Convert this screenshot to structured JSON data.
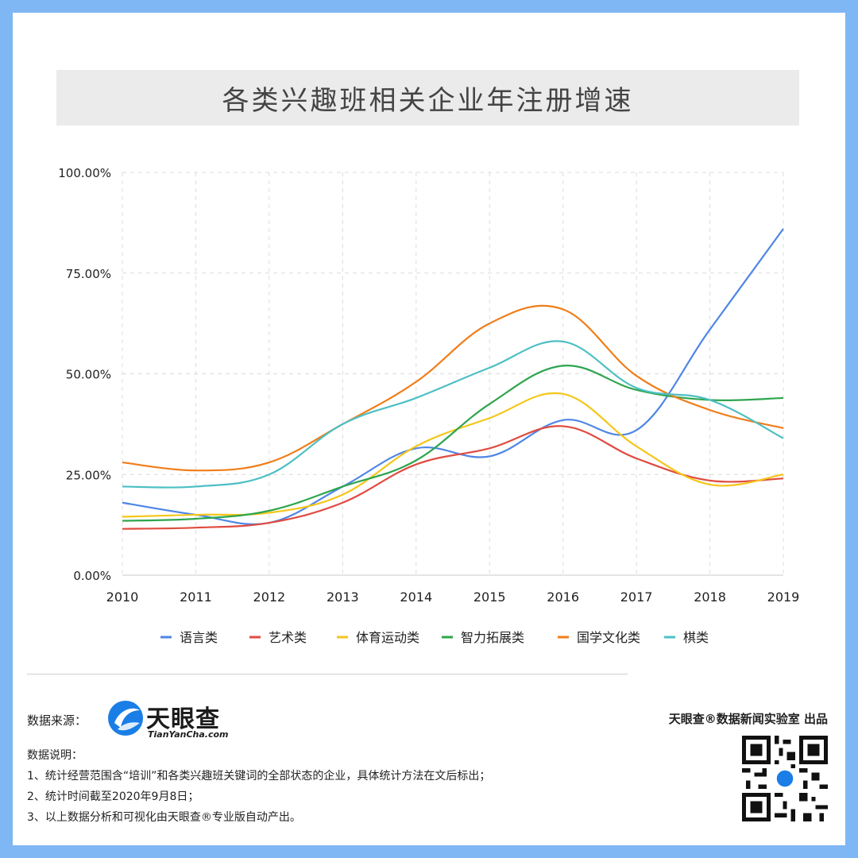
{
  "title": "各类兴趣班相关企业年注册增速",
  "chart_data": {
    "type": "line",
    "x": [
      "2010",
      "2011",
      "2012",
      "2013",
      "2014",
      "2015",
      "2016",
      "2017",
      "2018",
      "2019"
    ],
    "y_ticks": [
      "0.00%",
      "25.00%",
      "50.00%",
      "75.00%",
      "100.00%"
    ],
    "ylim": [
      0,
      100
    ],
    "grid": true,
    "legend_position": "bottom",
    "series": [
      {
        "name": "语言类",
        "color": "#4f86e6",
        "values": [
          18,
          15,
          13,
          22,
          31.5,
          29.5,
          38.5,
          36,
          61,
          86
        ]
      },
      {
        "name": "艺术类",
        "color": "#e04b40",
        "values": [
          11.5,
          11.8,
          13,
          18,
          27.5,
          31.5,
          37,
          29,
          23.5,
          24
        ]
      },
      {
        "name": "体育运动类",
        "color": "#f5c61a",
        "values": [
          14.5,
          15,
          15.5,
          20,
          32,
          39,
          45,
          32,
          22.5,
          25
        ]
      },
      {
        "name": "智力拓展类",
        "color": "#2ea54e",
        "values": [
          13.5,
          14,
          16,
          22,
          28.5,
          42.5,
          52,
          46,
          43.5,
          44
        ]
      },
      {
        "name": "国学文化类",
        "color": "#f07d19",
        "values": [
          28,
          26,
          28,
          37.5,
          48,
          62.5,
          66,
          49.5,
          41,
          36.5
        ]
      },
      {
        "name": "棋类",
        "color": "#4dbfc4",
        "values": [
          22,
          22,
          25,
          37.5,
          44,
          51.5,
          58,
          46.5,
          43.5,
          34
        ]
      }
    ]
  },
  "footer": {
    "source_label": "数据来源：",
    "logo_name": "天眼查",
    "logo_domain": "TianYanCha.com",
    "credit": "天眼查®数据新闻实验室 出品",
    "notes_title": "数据说明：",
    "notes": [
      "1、统计经营范围含“培训”和各类兴趣班关键词的全部状态的企业，具体统计方法在文后标出；",
      "2、统计时间截至2020年9月8日；",
      "3、以上数据分析和可视化由天眼查®专业版自动产出。"
    ]
  }
}
